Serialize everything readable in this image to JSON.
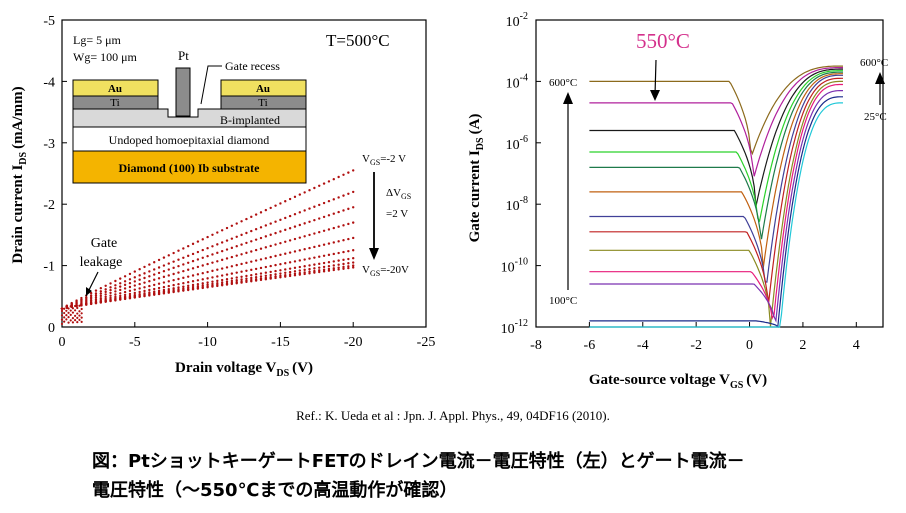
{
  "chart_data": [
    {
      "type": "scatter",
      "title": "T=500°C",
      "xlabel_main": "Drain voltage V",
      "xlabel_sub": "DS",
      "xlabel_unit": "(V)",
      "ylabel_main": "Drain current I",
      "ylabel_sub": "DS",
      "ylabel_unit": "(mA/mm)",
      "xlim": [
        0,
        -25
      ],
      "ylim": [
        0,
        -5
      ],
      "x_ticks": [
        "0",
        "-5",
        "-10",
        "-15",
        "-20",
        "-25"
      ],
      "y_ticks": [
        "0",
        "-1",
        "-2",
        "-3",
        "-4",
        "-5"
      ],
      "series": [
        {
          "vgs": -2,
          "x": [
            0,
            -20
          ],
          "y": [
            -0.3,
            -2.55
          ]
        },
        {
          "vgs": -4,
          "x": [
            0,
            -20
          ],
          "y": [
            -0.3,
            -2.2
          ]
        },
        {
          "vgs": -6,
          "x": [
            0,
            -20
          ],
          "y": [
            -0.3,
            -1.95
          ]
        },
        {
          "vgs": -8,
          "x": [
            0,
            -20
          ],
          "y": [
            -0.3,
            -1.7
          ]
        },
        {
          "vgs": -10,
          "x": [
            0,
            -20
          ],
          "y": [
            -0.3,
            -1.45
          ]
        },
        {
          "vgs": -12,
          "x": [
            0,
            -20
          ],
          "y": [
            -0.3,
            -1.25
          ]
        },
        {
          "vgs": -14,
          "x": [
            0,
            -20
          ],
          "y": [
            -0.3,
            -1.12
          ]
        },
        {
          "vgs": -16,
          "x": [
            0,
            -20
          ],
          "y": [
            -0.3,
            -1.05
          ]
        },
        {
          "vgs": -18,
          "x": [
            0,
            -20
          ],
          "y": [
            -0.3,
            -1.0
          ]
        },
        {
          "vgs": -20,
          "x": [
            0,
            -20
          ],
          "y": [
            -0.3,
            -0.97
          ]
        }
      ],
      "annotations": {
        "lg": "Lg= 5 μm",
        "wg": "Wg= 100 μm",
        "pt": "Pt",
        "gate_recess": "Gate recess",
        "au_left": "Au",
        "au_right": "Au",
        "ti_left": "Ti",
        "ti_right": "Ti",
        "b_implanted": "B-implanted",
        "undoped": "Undoped homoepitaxial diamond",
        "substrate": "Diamond (100) Ib substrate",
        "gate": "Gate",
        "leakage": "leakage",
        "vgs_top_main": "V",
        "vgs_top_sub": "GS",
        "vgs_top_val": "=-2 V",
        "delta_main": "ΔV",
        "delta_sub": "GS",
        "delta_val": "=2 V",
        "vgs_bot_main": "V",
        "vgs_bot_sub": "GS",
        "vgs_bot_val": "=-20V"
      },
      "colors": {
        "data": "#b01010",
        "au": "#f0e060",
        "ti": "#8c8c8c",
        "b_implanted": "#d9d9d9",
        "substrate": "#f4b400"
      }
    },
    {
      "type": "line",
      "title": "550°C",
      "xlabel_main": "Gate-source voltage V",
      "xlabel_sub": "GS",
      "xlabel_unit": "(V)",
      "ylabel_main": "Gate current I",
      "ylabel_sub": "DS",
      "ylabel_unit": "(A)",
      "xlim": [
        -8,
        5
      ],
      "ylim": [
        1e-12,
        0.01
      ],
      "log_y": true,
      "x_ticks": [
        "-8",
        "-6",
        "-4",
        "-2",
        "0",
        "2",
        "4"
      ],
      "y_ticks": [
        {
          "base": "10",
          "exp": "-2"
        },
        {
          "base": "10",
          "exp": "-4"
        },
        {
          "base": "10",
          "exp": "-6"
        },
        {
          "base": "10",
          "exp": "-8"
        },
        {
          "base": "10",
          "exp": "-10"
        },
        {
          "base": "10",
          "exp": "-12"
        }
      ],
      "series": [
        {
          "color": "#8c6a1c",
          "left_log": -4.0,
          "right_log": -3.5
        },
        {
          "color": "#b0209c",
          "left_log": -4.7,
          "right_log": -3.55
        },
        {
          "color": "#1a1a1a",
          "left_log": -5.6,
          "right_log": -3.6
        },
        {
          "color": "#2ad22a",
          "left_log": -6.3,
          "right_log": -3.65
        },
        {
          "color": "#1e7a4a",
          "left_log": -6.8,
          "right_log": -3.7
        },
        {
          "color": "#c06010",
          "left_log": -7.6,
          "right_log": -3.75
        },
        {
          "color": "#404098",
          "left_log": -8.4,
          "right_log": -3.8
        },
        {
          "color": "#c02020",
          "left_log": -8.9,
          "right_log": -3.9
        },
        {
          "color": "#8a8a20",
          "left_log": -9.5,
          "right_log": -4.0
        },
        {
          "color": "#e81c7a",
          "left_log": -10.2,
          "right_log": -4.1
        },
        {
          "color": "#7a30b0",
          "left_log": -10.6,
          "right_log": -4.3
        },
        {
          "color": "#1a2a8a",
          "left_log": -11.8,
          "right_log": -4.5
        },
        {
          "color": "#22c8d8",
          "left_log": -12.0,
          "right_log": -4.7
        }
      ],
      "annotations": {
        "t600_left": "600°C",
        "t100_left": "100°C",
        "t600_right": "600°C",
        "t25_right": "25°C"
      },
      "colors": {
        "title": "#d4308c"
      }
    }
  ],
  "reference": "Ref.: K. Ueda et al : Jpn. J. Appl. Phys., 49, 04DF16 (2010).",
  "caption": {
    "line1": "図：PtショットキーゲートFETのドレイン電流－電圧特性（左）とゲート電流－",
    "line2": "電圧特性（～550℃までの高温動作が確認）"
  }
}
